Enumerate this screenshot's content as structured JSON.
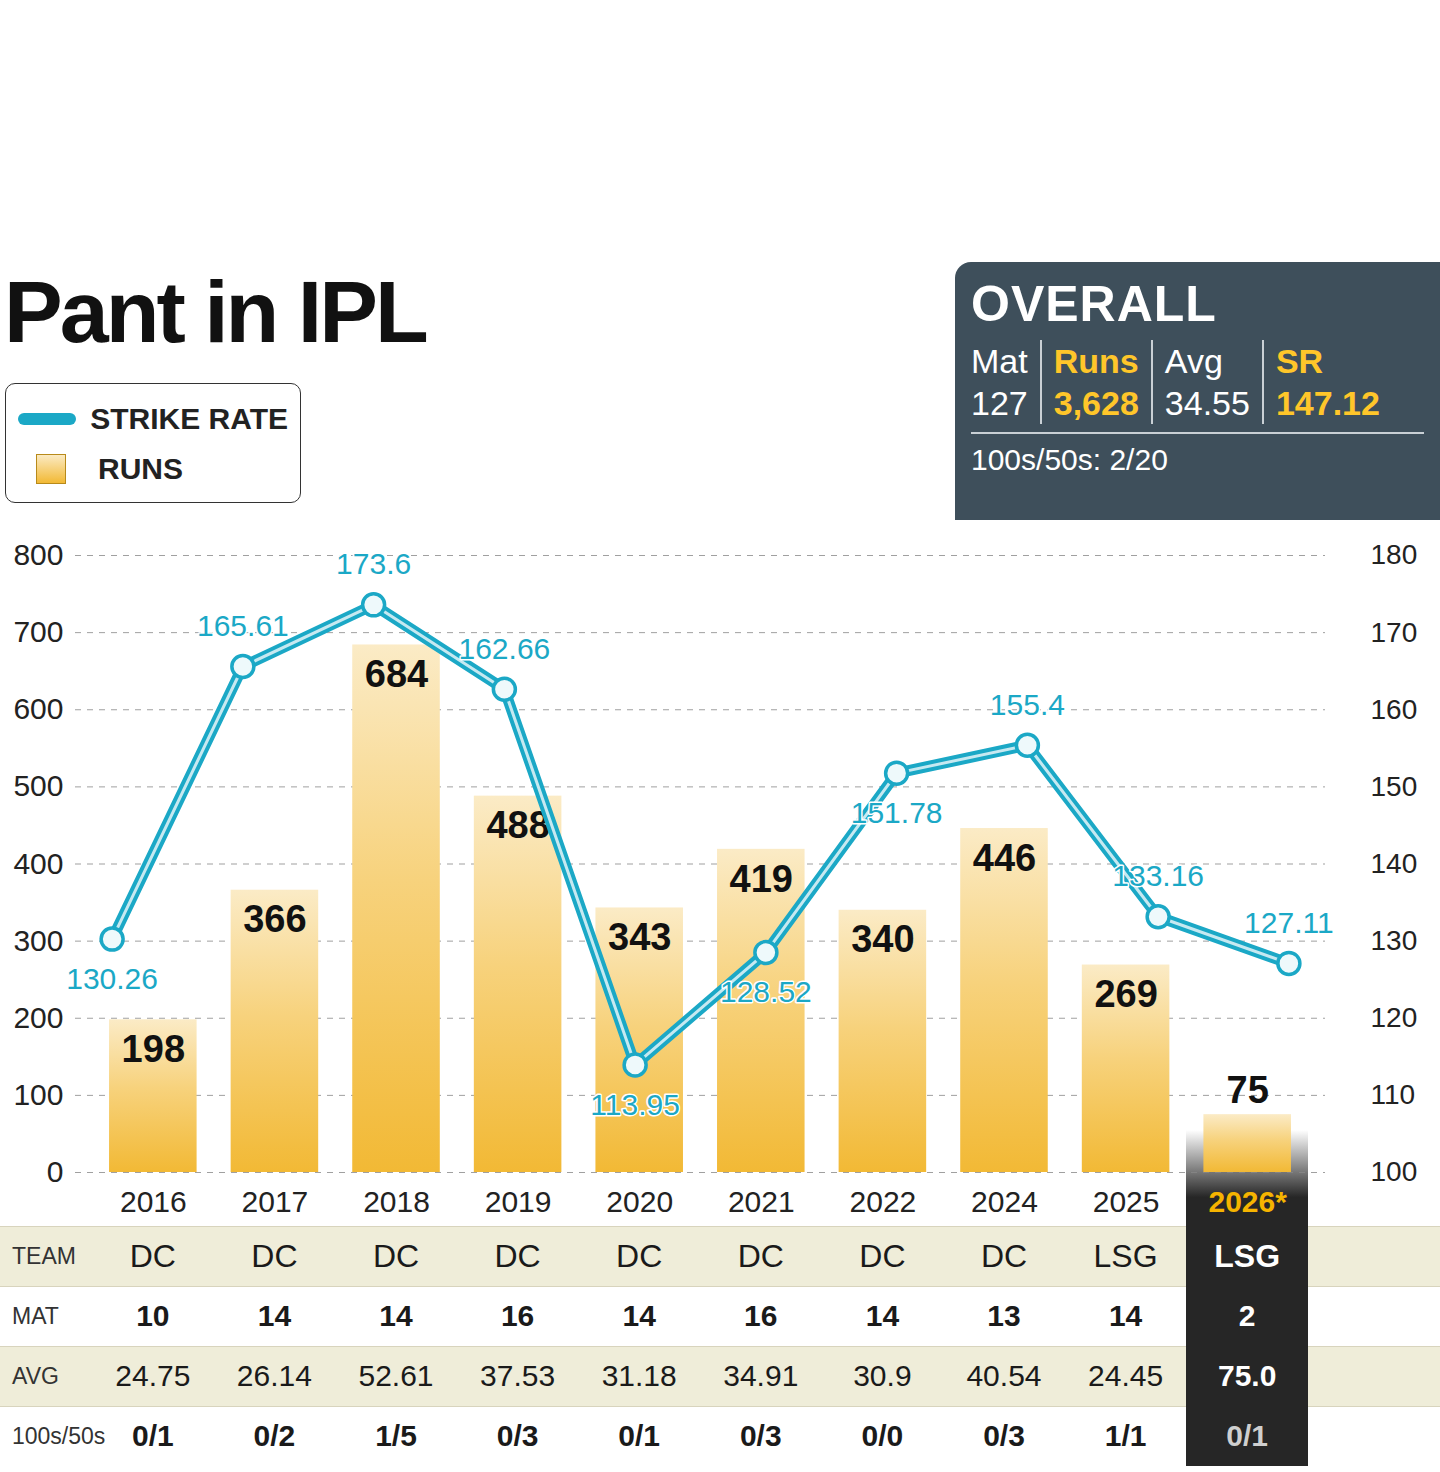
{
  "chart_data": {
    "type": "bar",
    "title": "Pant in IPL",
    "categories": [
      "2016",
      "2017",
      "2018",
      "2019",
      "2020",
      "2021",
      "2022",
      "2024",
      "2025",
      "2026*"
    ],
    "series": [
      {
        "name": "STRIKE RATE",
        "type": "line",
        "axis": "y2",
        "color": "#1ba8c6",
        "marker": "circle",
        "values": [
          130.26,
          165.61,
          173.6,
          162.66,
          113.95,
          128.52,
          151.78,
          155.4,
          133.16,
          127.11
        ]
      },
      {
        "name": "RUNS",
        "type": "bar",
        "color": "#f2b935",
        "values": [
          198,
          366,
          684,
          488,
          343,
          419,
          340,
          446,
          269,
          75
        ]
      }
    ],
    "ylim": [
      0,
      800
    ],
    "yticks": [
      0,
      100,
      200,
      300,
      400,
      500,
      600,
      700,
      800
    ],
    "y2lim": [
      100,
      180
    ],
    "y2ticks": [
      100,
      110,
      120,
      130,
      140,
      150,
      160,
      170,
      180
    ],
    "grid": true,
    "data_labels": true,
    "legend": "top-left"
  },
  "overall": {
    "title": "OVERALL",
    "columns": [
      {
        "label": "Mat",
        "value": "127"
      },
      {
        "label": "Runs",
        "value": "3,628"
      },
      {
        "label": "Avg",
        "value": "34.55"
      },
      {
        "label": "SR",
        "value": "147.12"
      }
    ],
    "footer": "100s/50s: 2/20"
  },
  "table": {
    "rows": [
      {
        "label": "TEAM",
        "values": [
          "DC",
          "DC",
          "DC",
          "DC",
          "DC",
          "DC",
          "DC",
          "DC",
          "LSG",
          "LSG"
        ]
      },
      {
        "label": "MAT",
        "values": [
          "10",
          "14",
          "14",
          "16",
          "14",
          "16",
          "14",
          "13",
          "14",
          "2"
        ]
      },
      {
        "label": "AVG",
        "values": [
          "24.75",
          "26.14",
          "52.61",
          "37.53",
          "31.18",
          "34.91",
          "30.9",
          "40.54",
          "24.45",
          "75.0"
        ]
      },
      {
        "label": "100s/50s",
        "values": [
          "0/1",
          "0/2",
          "1/5",
          "0/3",
          "0/1",
          "0/3",
          "0/0",
          "0/3",
          "1/1",
          "0/1"
        ]
      }
    ]
  }
}
